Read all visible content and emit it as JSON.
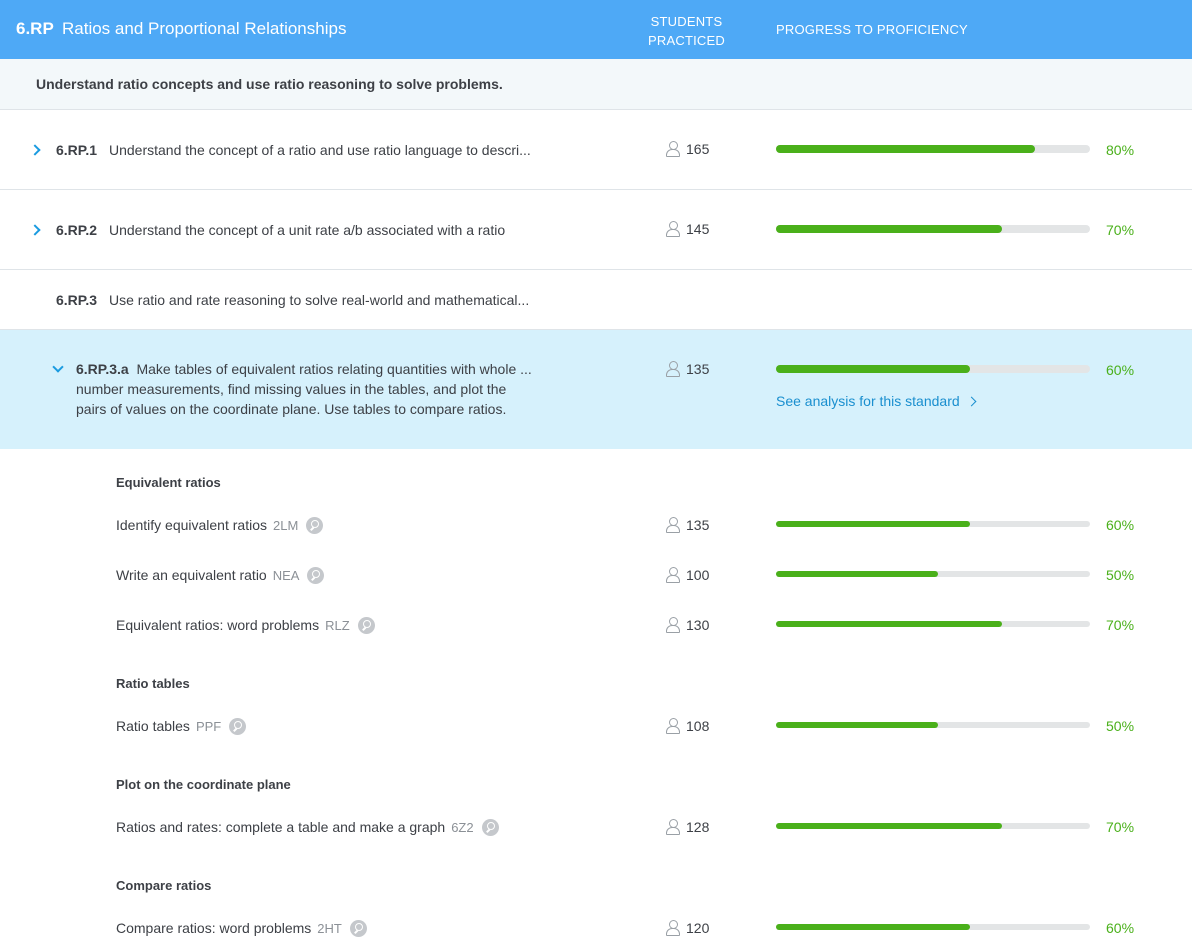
{
  "header": {
    "code": "6.RP",
    "title": "Ratios and Proportional Relationships",
    "students_col_line1": "STUDENTS",
    "students_col_line2": "PRACTICED",
    "progress_col": "PROGRESS TO PROFICIENCY",
    "bg_color": "#4ea9f6"
  },
  "subheader": "Understand ratio concepts and use ratio reasoning to solve problems.",
  "standards": [
    {
      "code": "6.RP.1",
      "text": "Understand the concept of a ratio and use ratio language to descri...",
      "students": "165",
      "progress": 0.8,
      "pct": "80%"
    },
    {
      "code": "6.RP.2",
      "text": "Understand the concept of a unit rate a/b associated with a ratio",
      "students": "145",
      "progress": 0.7,
      "pct": "70%"
    },
    {
      "code": "6.RP.3",
      "text": "Use ratio and rate reasoning to solve real-world and mathematical..."
    }
  ],
  "expanded": {
    "code": "6.RP.3.a",
    "line1": "Make tables of equivalent ratios relating quantities with whole ...",
    "line2": "number measurements, find missing values in the tables, and plot the",
    "line3": "pairs of values on the coordinate plane. Use tables to compare ratios.",
    "students": "135",
    "progress": 0.6,
    "pct": "60%",
    "analysis_link": "See analysis for this standard"
  },
  "groups": [
    {
      "name": "Equivalent ratios"
    },
    {
      "name": "Ratio tables"
    },
    {
      "name": "Plot on the coordinate plane"
    },
    {
      "name": "Compare ratios"
    }
  ],
  "skills": [
    {
      "name": "Identify equivalent ratios",
      "code": "2LM",
      "students": "135",
      "progress": 0.6,
      "pct": "60%"
    },
    {
      "name": "Write an equivalent ratio",
      "code": "NEA",
      "students": "100",
      "progress": 0.5,
      "pct": "50%"
    },
    {
      "name": "Equivalent ratios: word problems",
      "code": "RLZ",
      "students": "130",
      "progress": 0.7,
      "pct": "70%"
    },
    {
      "name": "Ratio tables",
      "code": "PPF",
      "students": "108",
      "progress": 0.5,
      "pct": "50%"
    },
    {
      "name": "Ratios and rates: complete a table and make a graph",
      "code": "6Z2",
      "students": "128",
      "progress": 0.7,
      "pct": "70%"
    },
    {
      "name": "Compare ratios: word problems",
      "code": "2HT",
      "students": "120",
      "progress": 0.6,
      "pct": "60%"
    }
  ],
  "icons": {
    "expand": "chevron-right-icon",
    "collapse": "chevron-down-icon",
    "students": "user-icon",
    "preview": "magnifier-icon"
  },
  "colors": {
    "progress": "#4ab01a",
    "link": "#1a8fcf",
    "expanded_bg": "#d6f1fc"
  }
}
